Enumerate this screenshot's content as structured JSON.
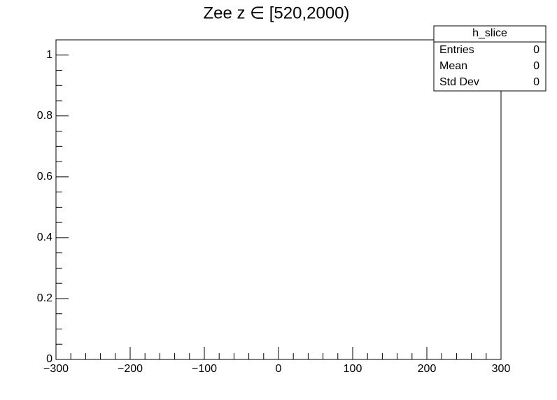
{
  "chart_data": {
    "type": "histogram",
    "title": "Zee z ∈ [520,2000)",
    "xlim": [
      -300,
      300
    ],
    "xticks": [
      {
        "value": -300,
        "label": "−300"
      },
      {
        "value": -200,
        "label": "−200"
      },
      {
        "value": -100,
        "label": "−100"
      },
      0,
      100,
      200,
      300
    ],
    "ylim": [
      0,
      1.05
    ],
    "yticks": [
      0,
      0.2,
      0.4,
      0.6,
      0.8,
      1
    ],
    "grid": false,
    "stats": {
      "name": "h_slice",
      "rows": [
        {
          "label": "Entries",
          "value": 0
        },
        {
          "label": "Mean",
          "value": 0
        },
        {
          "label": "Std Dev",
          "value": 0
        }
      ]
    }
  }
}
